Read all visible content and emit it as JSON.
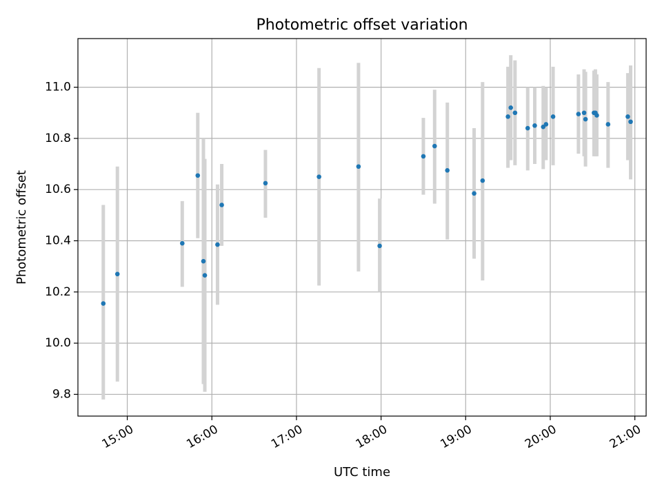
{
  "chart_data": {
    "type": "scatter",
    "title": "Photometric offset variation",
    "xlabel": "UTC time",
    "ylabel": "Photometric offset",
    "x_format": "HH:MM",
    "xlim": [
      "14:25",
      "21:08"
    ],
    "ylim": [
      9.715,
      11.19
    ],
    "grid": true,
    "xticks": [
      "15:00",
      "16:00",
      "17:00",
      "18:00",
      "19:00",
      "20:00",
      "21:00"
    ],
    "yticks": [
      9.8,
      10.0,
      10.2,
      10.4,
      10.6,
      10.8,
      11.0
    ],
    "ytick_labels": [
      "9.8",
      "10.0",
      "10.2",
      "10.4",
      "10.6",
      "10.8",
      "11.0"
    ],
    "colors": {
      "point": "#1f77b4",
      "errorbar": "#d3d3d3",
      "grid": "#b0b0b0"
    },
    "points": [
      {
        "x": "14:43",
        "y": 10.155,
        "ylo": 9.78,
        "yhi": 10.54
      },
      {
        "x": "14:53",
        "y": 10.27,
        "ylo": 9.85,
        "yhi": 10.69
      },
      {
        "x": "15:39",
        "y": 10.39,
        "ylo": 10.22,
        "yhi": 10.555
      },
      {
        "x": "15:50",
        "y": 10.655,
        "ylo": 10.41,
        "yhi": 10.9
      },
      {
        "x": "15:54",
        "y": 10.32,
        "ylo": 9.84,
        "yhi": 10.8
      },
      {
        "x": "15:55",
        "y": 10.265,
        "ylo": 9.81,
        "yhi": 10.72
      },
      {
        "x": "16:04",
        "y": 10.385,
        "ylo": 10.15,
        "yhi": 10.62
      },
      {
        "x": "16:07",
        "y": 10.54,
        "ylo": 10.38,
        "yhi": 10.7
      },
      {
        "x": "16:38",
        "y": 10.625,
        "ylo": 10.49,
        "yhi": 10.755
      },
      {
        "x": "17:16",
        "y": 10.65,
        "ylo": 10.225,
        "yhi": 11.075
      },
      {
        "x": "17:44",
        "y": 10.69,
        "ylo": 10.28,
        "yhi": 11.095
      },
      {
        "x": "17:59",
        "y": 10.38,
        "ylo": 10.2,
        "yhi": 10.565
      },
      {
        "x": "18:30",
        "y": 10.73,
        "ylo": 10.58,
        "yhi": 10.88
      },
      {
        "x": "18:38",
        "y": 10.77,
        "ylo": 10.545,
        "yhi": 10.99
      },
      {
        "x": "18:47",
        "y": 10.675,
        "ylo": 10.405,
        "yhi": 10.94
      },
      {
        "x": "19:06",
        "y": 10.585,
        "ylo": 10.33,
        "yhi": 10.84
      },
      {
        "x": "19:12",
        "y": 10.635,
        "ylo": 10.245,
        "yhi": 11.02
      },
      {
        "x": "19:30",
        "y": 10.885,
        "ylo": 10.685,
        "yhi": 11.08
      },
      {
        "x": "19:32",
        "y": 10.92,
        "ylo": 10.715,
        "yhi": 11.125
      },
      {
        "x": "19:35",
        "y": 10.9,
        "ylo": 10.695,
        "yhi": 11.105
      },
      {
        "x": "19:44",
        "y": 10.84,
        "ylo": 10.675,
        "yhi": 11.0
      },
      {
        "x": "19:49",
        "y": 10.85,
        "ylo": 10.7,
        "yhi": 11.0
      },
      {
        "x": "19:55",
        "y": 10.845,
        "ylo": 10.68,
        "yhi": 11.005
      },
      {
        "x": "19:57",
        "y": 10.855,
        "ylo": 10.715,
        "yhi": 11.0
      },
      {
        "x": "20:02",
        "y": 10.885,
        "ylo": 10.695,
        "yhi": 11.08
      },
      {
        "x": "20:20",
        "y": 10.895,
        "ylo": 10.74,
        "yhi": 11.05
      },
      {
        "x": "20:24",
        "y": 10.9,
        "ylo": 10.73,
        "yhi": 11.07
      },
      {
        "x": "20:25",
        "y": 10.875,
        "ylo": 10.69,
        "yhi": 11.06
      },
      {
        "x": "20:31",
        "y": 10.9,
        "ylo": 10.73,
        "yhi": 11.065
      },
      {
        "x": "20:32",
        "y": 10.9,
        "ylo": 10.73,
        "yhi": 11.07
      },
      {
        "x": "20:33",
        "y": 10.89,
        "ylo": 10.73,
        "yhi": 11.05
      },
      {
        "x": "20:41",
        "y": 10.855,
        "ylo": 10.685,
        "yhi": 11.02
      },
      {
        "x": "20:55",
        "y": 10.885,
        "ylo": 10.715,
        "yhi": 11.055
      },
      {
        "x": "20:57",
        "y": 10.865,
        "ylo": 10.64,
        "yhi": 11.085
      }
    ]
  }
}
